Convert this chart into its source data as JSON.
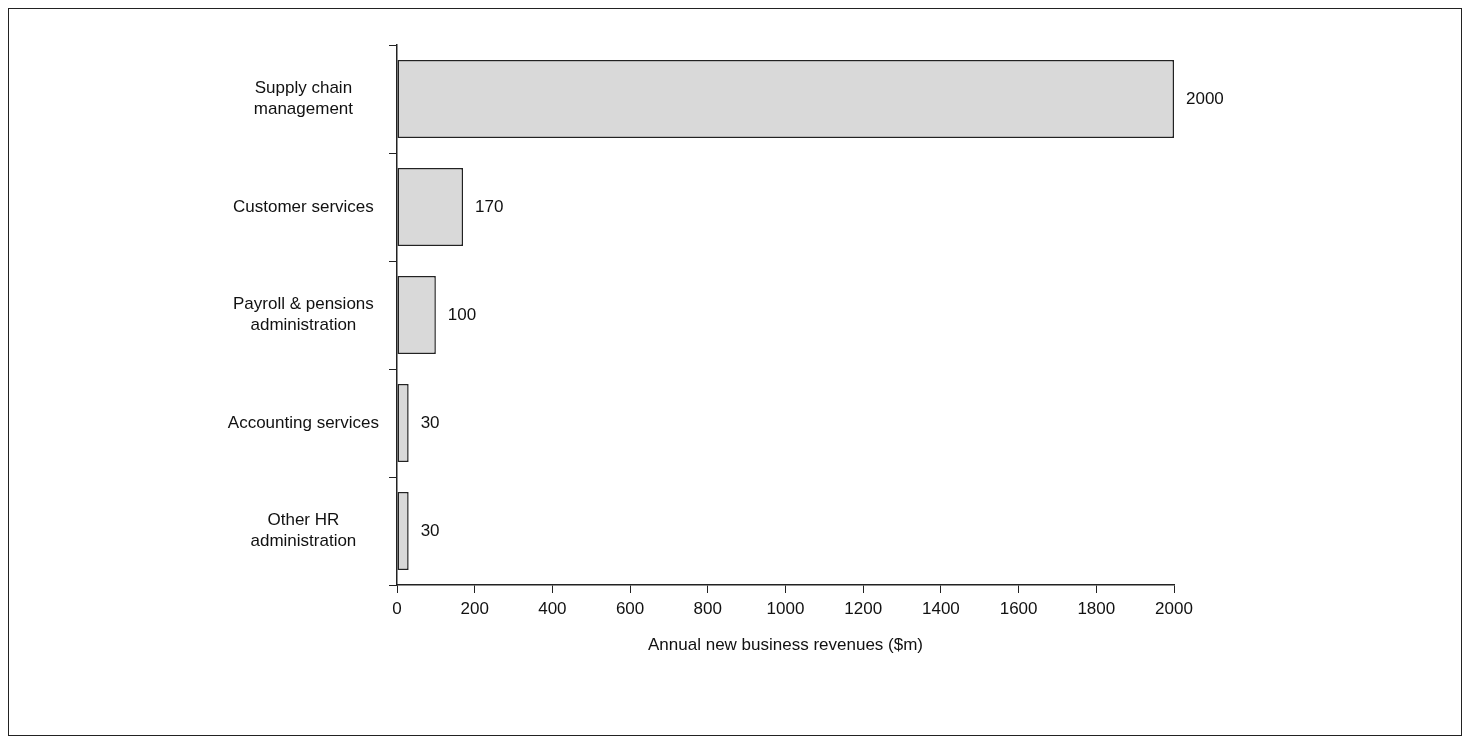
{
  "chart_data": {
    "type": "bar",
    "orientation": "horizontal",
    "xlabel": "Annual new business revenues ($m)",
    "categories": [
      "Supply chain management",
      "Customer services",
      "Payroll & pensions administration",
      "Accounting services",
      "Other HR administration"
    ],
    "values": [
      2000,
      170,
      100,
      30,
      30
    ],
    "color": "#d9d9d9",
    "xlim": [
      0,
      2000
    ],
    "xticks": [
      0,
      200,
      400,
      600,
      800,
      1000,
      1200,
      1400,
      1600,
      1800,
      2000
    ],
    "grid": false,
    "legend": false,
    "data_labels": true
  }
}
